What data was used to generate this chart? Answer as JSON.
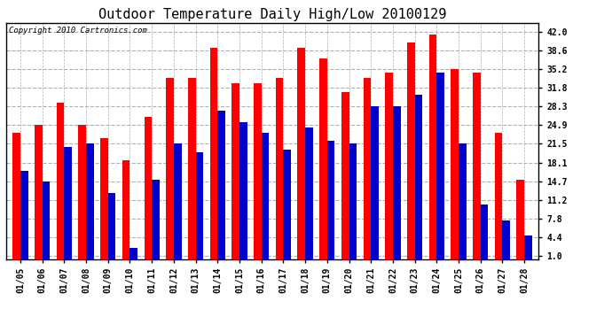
{
  "title": "Outdoor Temperature Daily High/Low 20100129",
  "copyright": "Copyright 2010 Cartronics.com",
  "dates": [
    "01/05",
    "01/06",
    "01/07",
    "01/08",
    "01/09",
    "01/10",
    "01/11",
    "01/12",
    "01/13",
    "01/14",
    "01/15",
    "01/16",
    "01/17",
    "01/18",
    "01/19",
    "01/20",
    "01/21",
    "01/22",
    "01/23",
    "01/24",
    "01/25",
    "01/26",
    "01/27",
    "01/28"
  ],
  "highs": [
    23.5,
    25.0,
    29.0,
    25.0,
    22.5,
    18.5,
    26.5,
    33.5,
    33.5,
    39.0,
    32.5,
    32.5,
    33.5,
    39.0,
    37.0,
    31.0,
    33.5,
    34.5,
    40.0,
    41.5,
    35.2,
    34.5,
    23.5,
    15.0
  ],
  "lows": [
    16.5,
    14.7,
    21.0,
    21.5,
    12.5,
    2.5,
    15.0,
    21.5,
    20.0,
    27.5,
    25.5,
    23.5,
    20.5,
    24.5,
    22.0,
    21.5,
    28.3,
    28.3,
    30.5,
    34.5,
    21.5,
    10.5,
    7.5,
    4.7
  ],
  "high_color": "#ff0000",
  "low_color": "#0000cc",
  "bg_color": "#ffffff",
  "plot_bg_color": "#ffffff",
  "grid_color": "#b0b0b0",
  "yticks": [
    1.0,
    4.4,
    7.8,
    11.2,
    14.7,
    18.1,
    21.5,
    24.9,
    28.3,
    31.8,
    35.2,
    38.6,
    42.0
  ],
  "ylim": [
    0.5,
    43.5
  ],
  "title_fontsize": 11,
  "tick_fontsize": 7,
  "copyright_fontsize": 6.5,
  "bar_width": 0.35
}
